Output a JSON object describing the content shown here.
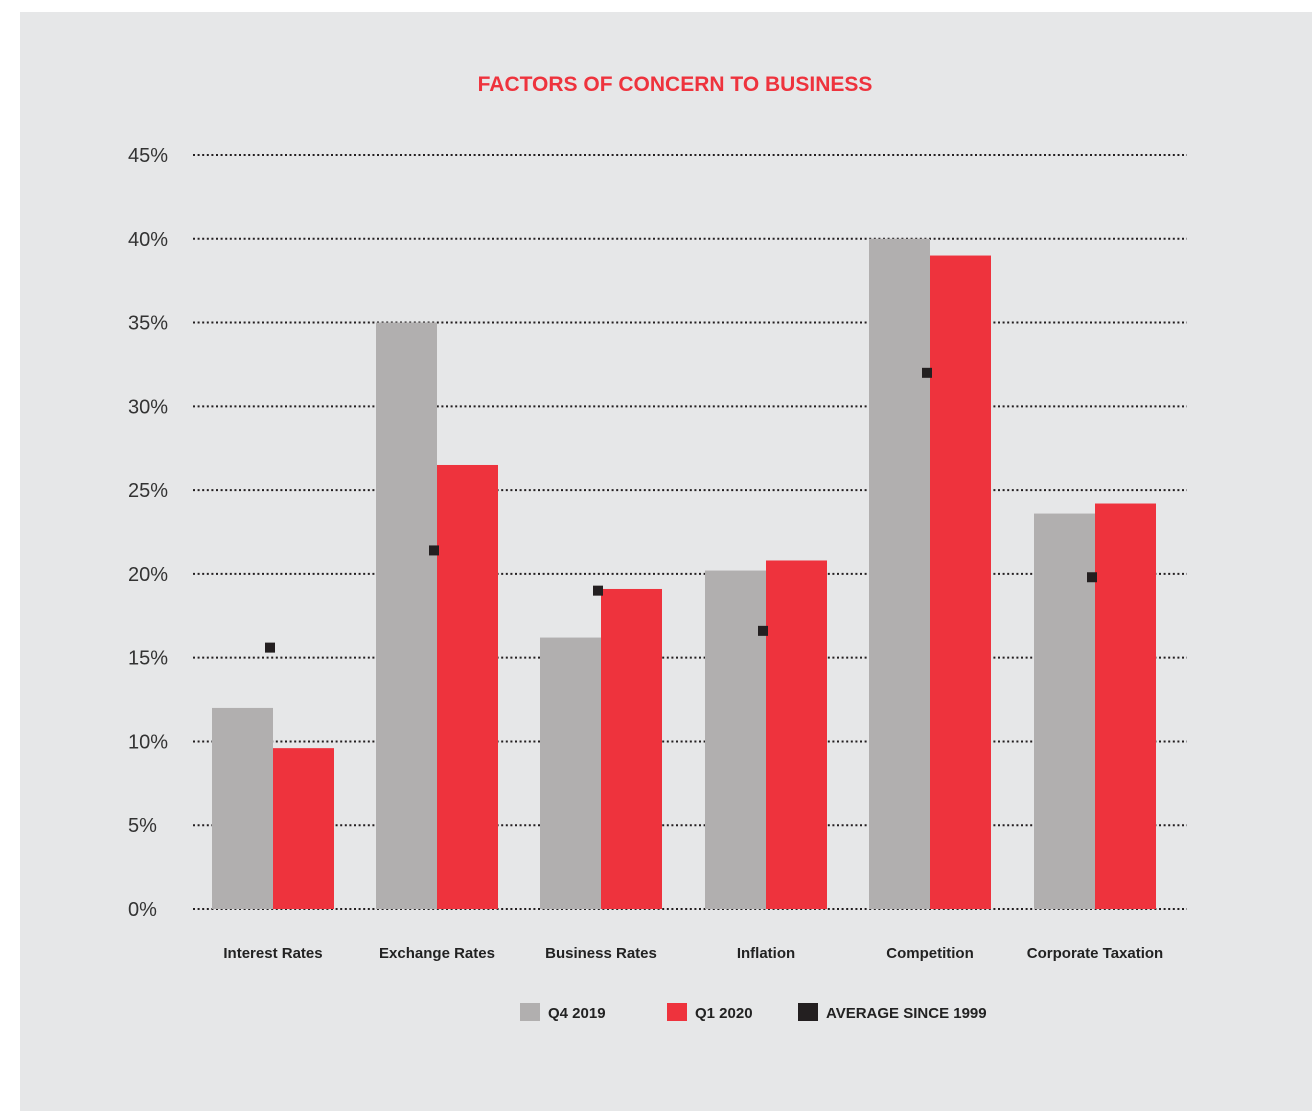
{
  "colors": {
    "background": "#e6e7e8",
    "title": "#ee333d",
    "q4_2019": "#b1afaf",
    "q1_2020": "#ee333d",
    "average": "#231f20",
    "grid": "#231f20"
  },
  "chart_data": {
    "type": "bar",
    "title": "FACTORS OF CONCERN TO BUSINESS",
    "xlabel": "",
    "ylabel": "",
    "ylim": [
      0,
      45
    ],
    "yticks": [
      0,
      5,
      10,
      15,
      20,
      25,
      30,
      35,
      40,
      45
    ],
    "ytick_labels": [
      "0%",
      "5%",
      "10%",
      "15%",
      "20%",
      "25%",
      "30%",
      "35%",
      "40%",
      "45%"
    ],
    "grid": "dotted horizontal",
    "legend_position": "bottom",
    "categories": [
      "Interest Rates",
      "Exchange Rates",
      "Business Rates",
      "Inflation",
      "Competition",
      "Corporate Taxation"
    ],
    "series": [
      {
        "name": "Q4 2019",
        "kind": "bar",
        "color_key": "q4_2019",
        "values": [
          12,
          35,
          16.2,
          20.2,
          40,
          23.6
        ]
      },
      {
        "name": "Q1 2020",
        "kind": "bar",
        "color_key": "q1_2020",
        "values": [
          9.6,
          26.5,
          19.1,
          20.8,
          39,
          24.2
        ]
      },
      {
        "name": "AVERAGE SINCE 1999",
        "kind": "marker",
        "color_key": "average",
        "values": [
          15.6,
          21.4,
          19.0,
          16.6,
          32.0,
          19.8
        ]
      }
    ]
  }
}
